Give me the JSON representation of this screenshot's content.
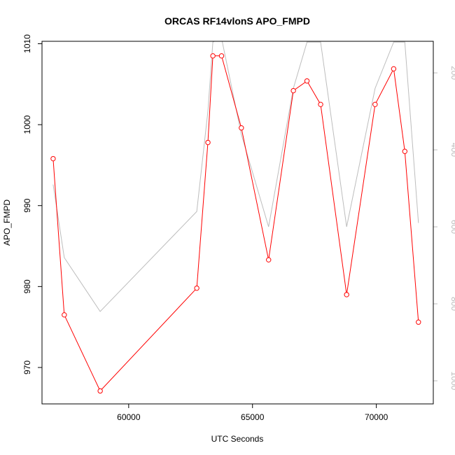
{
  "chart_data": {
    "type": "line",
    "title": "ORCAS RF14vlonS APO_FMPD",
    "xlabel": "UTC Seconds",
    "ylabel": "APO_FMPD",
    "xlim": [
      56500,
      72300
    ],
    "ylim": [
      965.5,
      1010.3
    ],
    "y2lim": [
      1060,
      118
    ],
    "x_ticks": [
      60000,
      65000,
      70000
    ],
    "y_ticks": [
      970,
      980,
      990,
      1000,
      1010
    ],
    "y2_ticks": [
      200,
      400,
      600,
      800,
      1000
    ],
    "series": [
      {
        "axis": "left",
        "color": "#ff0000",
        "markers": "open-circle",
        "x": [
          56950,
          57400,
          58850,
          62750,
          63200,
          63400,
          63750,
          64550,
          65650,
          66650,
          67200,
          67750,
          68800,
          69950,
          70700,
          71150,
          71700
        ],
        "y": [
          995.8,
          976.5,
          967.1,
          979.8,
          997.8,
          1008.5,
          1008.5,
          999.6,
          983.3,
          1004.2,
          1005.4,
          1002.5,
          979.0,
          1002.5,
          1006.9,
          996.7,
          975.6
        ]
      },
      {
        "axis": "right",
        "color": "#bdbdbd",
        "markers": "none",
        "x": [
          56950,
          57400,
          58850,
          62750,
          63200,
          63400,
          63750,
          64550,
          65650,
          66650,
          67200,
          67750,
          68800,
          69950,
          70700,
          71150,
          71700
        ],
        "y": [
          490,
          680,
          820,
          560,
          300,
          120,
          110,
          360,
          600,
          240,
          120,
          120,
          600,
          240,
          120,
          120,
          590
        ]
      }
    ]
  }
}
